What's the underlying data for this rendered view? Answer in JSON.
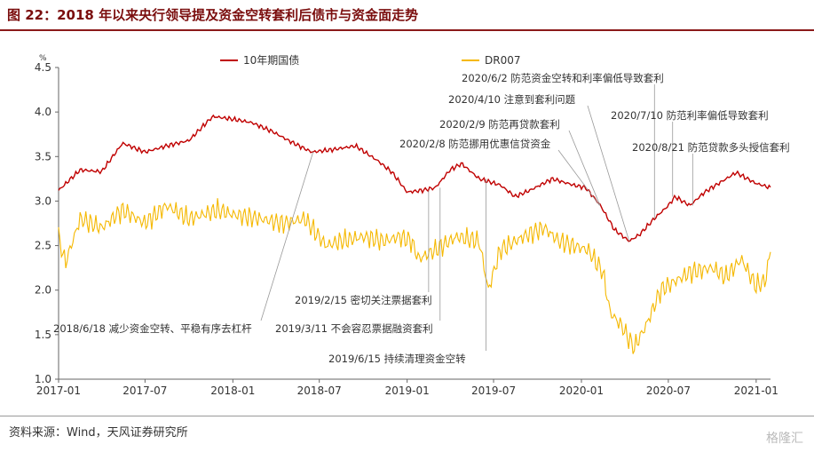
{
  "title": "图 22：2018 年以来央行领导提及资金空转套利后债市与资金面走势",
  "source": "资料来源：Wind，天风证券研究所",
  "watermark": "格隆汇",
  "colors": {
    "bond": "#c00000",
    "dr007": "#f5b800",
    "axis": "#666666",
    "leader": "#999999"
  },
  "chart_data": {
    "type": "line",
    "ylabel": "%",
    "ylim": [
      1.0,
      4.5
    ],
    "yticks": [
      "1.0",
      "1.5",
      "2.0",
      "2.5",
      "3.0",
      "3.5",
      "4.0",
      "4.5"
    ],
    "x_range": [
      "2017-01-01",
      "2021-01-31"
    ],
    "xticks": [
      "2017-01",
      "2017-07",
      "2018-01",
      "2018-07",
      "2019-01",
      "2019-07",
      "2020-01",
      "2020-07",
      "2021-01"
    ],
    "legend": {
      "placement": "top"
    },
    "series": [
      {
        "name": "10年期国债",
        "color": "#c00000",
        "x": [
          "2017-01-01",
          "2017-02-15",
          "2017-04-01",
          "2017-05-15",
          "2017-07-01",
          "2017-08-15",
          "2017-10-01",
          "2017-11-01",
          "2017-11-20",
          "2018-01-01",
          "2018-02-10",
          "2018-03-25",
          "2018-05-01",
          "2018-06-15",
          "2018-08-01",
          "2018-09-15",
          "2018-11-01",
          "2018-12-01",
          "2019-01-01",
          "2019-02-01",
          "2019-03-01",
          "2019-04-01",
          "2019-04-25",
          "2019-06-01",
          "2019-07-15",
          "2019-08-15",
          "2019-09-15",
          "2019-11-01",
          "2019-12-15",
          "2020-01-10",
          "2020-02-10",
          "2020-03-10",
          "2020-04-10",
          "2020-05-01",
          "2020-06-01",
          "2020-07-01",
          "2020-07-15",
          "2020-08-15",
          "2020-09-15",
          "2020-10-15",
          "2020-11-20",
          "2020-12-31",
          "2021-01-31"
        ],
        "values": [
          3.12,
          3.35,
          3.33,
          3.65,
          3.55,
          3.62,
          3.68,
          3.85,
          3.95,
          3.92,
          3.88,
          3.78,
          3.67,
          3.55,
          3.58,
          3.62,
          3.45,
          3.32,
          3.1,
          3.12,
          3.15,
          3.35,
          3.42,
          3.25,
          3.18,
          3.05,
          3.12,
          3.25,
          3.18,
          3.15,
          2.95,
          2.68,
          2.55,
          2.62,
          2.8,
          2.95,
          3.05,
          2.95,
          3.1,
          3.2,
          3.32,
          3.2,
          3.15
        ]
      },
      {
        "name": "DR007",
        "color": "#f5b800",
        "x": [
          "2017-01-01",
          "2017-01-15",
          "2017-02-15",
          "2017-04-01",
          "2017-05-15",
          "2017-07-01",
          "2017-08-15",
          "2017-10-01",
          "2017-12-01",
          "2018-01-01",
          "2018-03-01",
          "2018-04-15",
          "2018-06-01",
          "2018-07-15",
          "2018-08-15",
          "2018-10-01",
          "2018-11-15",
          "2018-12-15",
          "2019-01-10",
          "2019-01-25",
          "2019-03-01",
          "2019-04-15",
          "2019-06-01",
          "2019-06-20",
          "2019-07-15",
          "2019-09-01",
          "2019-10-15",
          "2019-11-15",
          "2019-12-15",
          "2020-01-15",
          "2020-02-15",
          "2020-03-01",
          "2020-03-25",
          "2020-04-20",
          "2020-05-15",
          "2020-06-15",
          "2020-07-15",
          "2020-08-15",
          "2020-09-30",
          "2020-10-30",
          "2020-12-01",
          "2020-12-31",
          "2021-01-20",
          "2021-01-31"
        ],
        "values": [
          2.6,
          2.3,
          2.8,
          2.7,
          2.9,
          2.75,
          2.95,
          2.8,
          2.9,
          2.85,
          2.8,
          2.75,
          2.8,
          2.5,
          2.55,
          2.6,
          2.55,
          2.6,
          2.55,
          2.35,
          2.45,
          2.6,
          2.55,
          2.0,
          2.45,
          2.6,
          2.7,
          2.55,
          2.5,
          2.45,
          2.2,
          1.75,
          1.6,
          1.35,
          1.6,
          2.0,
          2.1,
          2.2,
          2.25,
          2.15,
          2.35,
          2.05,
          2.1,
          2.45
        ]
      }
    ],
    "annotations": [
      {
        "text": "2020/6/2 防范资金空转和利率偏低导致套利",
        "date": "2020-06-02",
        "y": 2.8
      },
      {
        "text": "2020/4/10 注意到套利问题",
        "date": "2020-04-10",
        "y": 2.55
      },
      {
        "text": "2020/7/10 防范利率偏低导致套利",
        "date": "2020-07-10",
        "y": 3.05
      },
      {
        "text": "2020/2/9 防范再贷款套利",
        "date": "2020-02-09",
        "y": 2.95
      },
      {
        "text": "2020/2/8 防范挪用优惠信贷资金",
        "date": "2020-02-08",
        "y": 2.95
      },
      {
        "text": "2020/8/21 防范贷款多头授信套利",
        "date": "2020-08-21",
        "y": 2.95
      },
      {
        "text": "2019/2/15 密切关注票据套利",
        "date": "2019-02-15",
        "y": 3.12
      },
      {
        "text": "2018/6/18 减少资金空转、平稳有序去杠杆",
        "date": "2018-06-18",
        "y": 3.55
      },
      {
        "text": "2019/3/11 不会容忍票据融资套利",
        "date": "2019-03-11",
        "y": 3.15
      },
      {
        "text": "2019/6/15 持续清理资金空转",
        "date": "2019-06-15",
        "y": 3.25
      }
    ]
  }
}
